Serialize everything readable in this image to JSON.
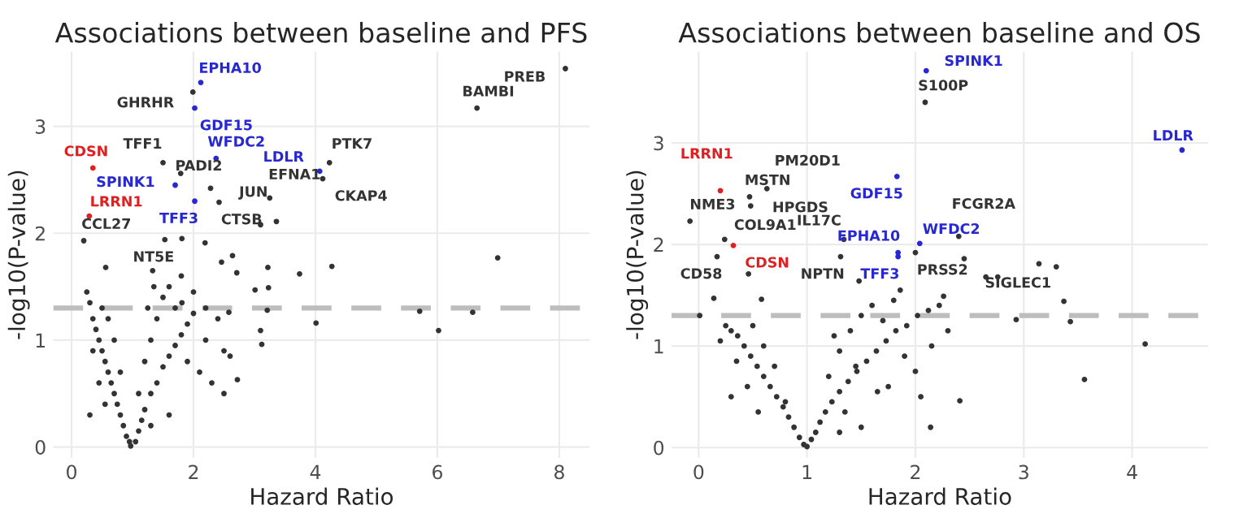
{
  "chart_data": [
    {
      "type": "scatter",
      "title": "Associations between baseline and PFS",
      "xlabel": "Hazard Ratio",
      "ylabel": "-log10(P-value)",
      "xlim": [
        -0.3,
        8.5
      ],
      "ylim": [
        -0.1,
        3.7
      ],
      "xticks": [
        0,
        2,
        4,
        6,
        8
      ],
      "yticks": [
        0,
        1,
        2,
        3
      ],
      "grid": true,
      "marker": "circle",
      "ref_lines": [
        {
          "axis": "y",
          "value": 1.3,
          "color": "#bdbdbd",
          "line_style": "dashed"
        }
      ],
      "series": [
        {
          "color": "#333333",
          "x": [
            0.95,
            0.9,
            0.85,
            0.8,
            0.75,
            0.7,
            0.65,
            0.6,
            0.55,
            0.5,
            0.45,
            0.4,
            0.35,
            0.3,
            0.25,
            0.5,
            0.6,
            0.7,
            0.8,
            0.35,
            0.45,
            0.3,
            0.55,
            0.97,
            1.05,
            1.1,
            1.15,
            1.2,
            1.3,
            1.4,
            1.5,
            1.6,
            1.7,
            1.8,
            1.9,
            2.0,
            1.2,
            1.3,
            1.4,
            1.5,
            1.6,
            1.7,
            1.9,
            2.1,
            2.2,
            2.3,
            2.5,
            2.6,
            1.1,
            1.25,
            1.35,
            1.8,
            2.0,
            2.2,
            2.4,
            2.5,
            1.6,
            1.3,
            1.99,
            1.5,
            1.79,
            2.28,
            3.25,
            2.42,
            4.12,
            4.23,
            1.53,
            0.2,
            6.65,
            8.1,
            3.1,
            3.36,
            2.19,
            1.81,
            6.99,
            4.27,
            3.74,
            5.71,
            6.58,
            6.02,
            4.01,
            0.56,
            2.71,
            3.22,
            2.64,
            2.46,
            3.01,
            3.23,
            3.21,
            3.1,
            3.12,
            2.72,
            2.58,
            1.81,
            1.33
          ],
          "values": [
            0.05,
            0.1,
            0.2,
            0.3,
            0.4,
            0.5,
            0.6,
            0.7,
            0.8,
            0.9,
            1.0,
            1.1,
            1.2,
            1.35,
            1.45,
            1.3,
            1.2,
            1.0,
            0.7,
            0.9,
            0.6,
            0.3,
            0.4,
            0.01,
            0.05,
            0.15,
            0.25,
            0.35,
            0.5,
            0.6,
            0.75,
            0.85,
            0.95,
            1.05,
            1.15,
            1.25,
            0.8,
            1.0,
            1.2,
            1.4,
            1.5,
            1.3,
            0.8,
            0.7,
            1.0,
            0.6,
            0.5,
            0.85,
            0.5,
            1.3,
            1.5,
            1.6,
            1.45,
            1.3,
            1.2,
            0.9,
            0.3,
            0.2,
            3.32,
            2.66,
            2.56,
            2.42,
            2.33,
            2.29,
            2.51,
            2.66,
            1.94,
            1.93,
            3.17,
            3.54,
            2.08,
            2.11,
            1.91,
            1.95,
            1.77,
            1.69,
            1.62,
            1.27,
            1.26,
            1.09,
            1.16,
            1.68,
            1.63,
            1.68,
            1.79,
            1.73,
            1.47,
            1.49,
            1.28,
            1.09,
            0.96,
            0.63,
            1.26,
            1.35,
            1.65
          ]
        },
        {
          "color": "#2828d0",
          "x": [
            2.12,
            2.02,
            2.37,
            4.07,
            1.7,
            2.02
          ],
          "values": [
            3.41,
            3.17,
            2.7,
            2.58,
            2.45,
            2.3
          ]
        },
        {
          "color": "#e02020",
          "x": [
            0.35,
            0.29
          ],
          "values": [
            2.61,
            2.16
          ]
        }
      ],
      "annotations": [
        {
          "text": "EPHA10",
          "x": 2.12,
          "y": 3.41
        },
        {
          "text": "GHRHR",
          "x": 1.99,
          "y": 3.32
        },
        {
          "text": "GDF15",
          "x": 2.02,
          "y": 3.17
        },
        {
          "text": "PREB",
          "x": 8.1,
          "y": 3.54
        },
        {
          "text": "BAMBI",
          "x": 6.65,
          "y": 3.17
        },
        {
          "text": "CDSN",
          "x": 0.35,
          "y": 2.61
        },
        {
          "text": "TFF1",
          "x": 1.5,
          "y": 2.66
        },
        {
          "text": "WFDC2",
          "x": 2.37,
          "y": 2.7
        },
        {
          "text": "PTK7",
          "x": 4.23,
          "y": 2.66
        },
        {
          "text": "LDLR",
          "x": 4.07,
          "y": 2.58
        },
        {
          "text": "CKAP4",
          "x": 4.12,
          "y": 2.51
        },
        {
          "text": "PADI2",
          "x": 1.79,
          "y": 2.56
        },
        {
          "text": "SPINK1",
          "x": 1.7,
          "y": 2.45
        },
        {
          "text": "JUN",
          "x": 2.28,
          "y": 2.42
        },
        {
          "text": "EFNA1",
          "x": 3.25,
          "y": 2.33
        },
        {
          "text": "TFF3",
          "x": 2.02,
          "y": 2.3
        },
        {
          "text": "CTSB",
          "x": 2.42,
          "y": 2.29
        },
        {
          "text": "LRRN1",
          "x": 0.29,
          "y": 2.16
        },
        {
          "text": "NT5E",
          "x": 1.53,
          "y": 1.94
        },
        {
          "text": "CCL27",
          "x": 0.2,
          "y": 1.93
        }
      ]
    },
    {
      "type": "scatter",
      "title": "Associations between baseline and OS",
      "xlabel": "Hazard Ratio",
      "ylabel": "-log10(P-value)",
      "xlim": [
        -0.25,
        4.7
      ],
      "ylim": [
        -0.1,
        3.9
      ],
      "xticks": [
        0,
        1,
        2,
        3,
        4
      ],
      "yticks": [
        0,
        1,
        2,
        3
      ],
      "grid": true,
      "marker": "circle",
      "ref_lines": [
        {
          "axis": "y",
          "value": 1.3,
          "color": "#bdbdbd",
          "line_style": "dashed"
        }
      ],
      "series": [
        {
          "color": "#333333",
          "x": [
            0.97,
            0.93,
            0.88,
            0.83,
            0.78,
            0.72,
            0.66,
            0.6,
            0.54,
            0.48,
            0.42,
            0.36,
            0.3,
            0.25,
            0.2,
            0.5,
            0.6,
            0.7,
            0.35,
            0.45,
            0.3,
            0.55,
            0.8,
            1.0,
            1.04,
            1.08,
            1.12,
            1.17,
            1.23,
            1.3,
            1.38,
            1.46,
            1.55,
            1.64,
            1.73,
            1.82,
            1.92,
            2.02,
            2.12,
            2.22,
            1.2,
            1.3,
            1.4,
            1.5,
            1.6,
            1.7,
            1.8,
            1.9,
            2.0,
            1.25,
            1.35,
            1.45,
            1.65,
            1.75,
            2.05,
            2.15,
            2.3,
            1.5,
            1.3,
            2.09,
            0.47,
            0.63,
            0.48,
            -0.08,
            0.24,
            0.17,
            1.34,
            1.31,
            2.0,
            2.4,
            2.76,
            2.45,
            3.3,
            3.14,
            0.46,
            1.48,
            3.56,
            4.12,
            2.14,
            2.41,
            3.43,
            2.93,
            3.37,
            2.26,
            2.65,
            1.86,
            0.01,
            0.14,
            0.58
          ],
          "values": [
            0.03,
            0.1,
            0.2,
            0.3,
            0.4,
            0.5,
            0.6,
            0.7,
            0.8,
            0.9,
            1.0,
            1.1,
            1.15,
            1.2,
            1.05,
            1.2,
            1.0,
            0.8,
            0.85,
            0.6,
            0.5,
            0.35,
            0.45,
            0.01,
            0.08,
            0.15,
            0.25,
            0.35,
            0.45,
            0.55,
            0.65,
            0.75,
            0.85,
            0.95,
            1.05,
            1.15,
            1.2,
            1.3,
            1.35,
            1.4,
            0.7,
            0.95,
            1.15,
            1.3,
            1.4,
            1.25,
            1.45,
            0.9,
            0.75,
            1.1,
            0.35,
            0.8,
            0.55,
            0.6,
            0.5,
            1.0,
            1.15,
            0.2,
            0.15,
            3.4,
            2.47,
            2.55,
            2.38,
            2.23,
            2.05,
            1.88,
            2.05,
            1.88,
            1.92,
            2.08,
            1.68,
            1.86,
            1.78,
            1.81,
            1.71,
            1.64,
            0.67,
            1.02,
            0.2,
            0.46,
            1.24,
            1.26,
            1.44,
            1.49,
            1.68,
            1.55,
            1.3,
            1.47,
            1.46
          ]
        },
        {
          "color": "#2828d0",
          "x": [
            2.1,
            4.46,
            1.83,
            1.84,
            1.84,
            2.04
          ],
          "values": [
            3.71,
            2.93,
            2.67,
            1.92,
            1.88,
            2.01
          ]
        },
        {
          "color": "#e02020",
          "x": [
            0.2,
            0.32
          ],
          "values": [
            2.53,
            1.99
          ]
        }
      ],
      "annotations": [
        {
          "text": "SPINK1",
          "x": 2.1,
          "y": 3.71
        },
        {
          "text": "S100P",
          "x": 2.09,
          "y": 3.4
        },
        {
          "text": "LDLR",
          "x": 4.46,
          "y": 2.93
        },
        {
          "text": "GDF15",
          "x": 1.83,
          "y": 2.67
        },
        {
          "text": "LRRN1",
          "x": 0.2,
          "y": 2.53
        },
        {
          "text": "MSTN",
          "x": 0.47,
          "y": 2.47
        },
        {
          "text": "PM20D1",
          "x": 0.63,
          "y": 2.55
        },
        {
          "text": "NME3",
          "x": -0.08,
          "y": 2.23
        },
        {
          "text": "HPGDS",
          "x": 0.48,
          "y": 2.38
        },
        {
          "text": "COL9A1",
          "x": 0.24,
          "y": 2.05
        },
        {
          "text": "CDSN",
          "x": 0.32,
          "y": 1.99
        },
        {
          "text": "CD58",
          "x": 0.17,
          "y": 1.88
        },
        {
          "text": "IL17C",
          "x": 1.34,
          "y": 2.05
        },
        {
          "text": "NPTN",
          "x": 1.31,
          "y": 1.88
        },
        {
          "text": "EPHA10",
          "x": 1.84,
          "y": 1.92
        },
        {
          "text": "TFF3",
          "x": 1.84,
          "y": 1.88
        },
        {
          "text": "WFDC2",
          "x": 2.04,
          "y": 2.01
        },
        {
          "text": "FCGR2A",
          "x": 2.4,
          "y": 2.08
        },
        {
          "text": "PRSS2",
          "x": 2.0,
          "y": 1.92
        },
        {
          "text": "SIGLEC1",
          "x": 2.76,
          "y": 1.68
        }
      ]
    }
  ]
}
